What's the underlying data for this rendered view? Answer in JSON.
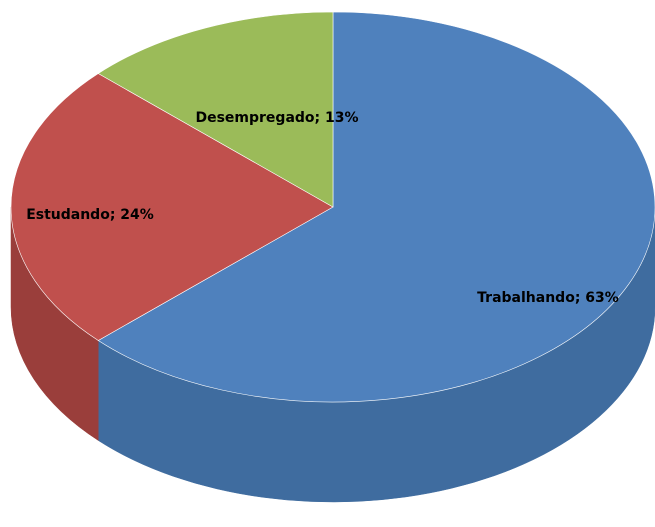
{
  "chart_data": {
    "type": "pie",
    "categories": [
      "Trabalhando",
      "Estudando",
      "Desempregado"
    ],
    "values": [
      63,
      24,
      13
    ],
    "value_labels": [
      "Trabalhando; 63%",
      "Estudando; 24%",
      "Desempregado; 13%"
    ],
    "colors": [
      "#4f81bd",
      "#c0504d",
      "#9bbb59"
    ],
    "side_colors": [
      "#3f6c9f",
      "#9a3e3b",
      "#7d9845"
    ],
    "three_d": true
  }
}
